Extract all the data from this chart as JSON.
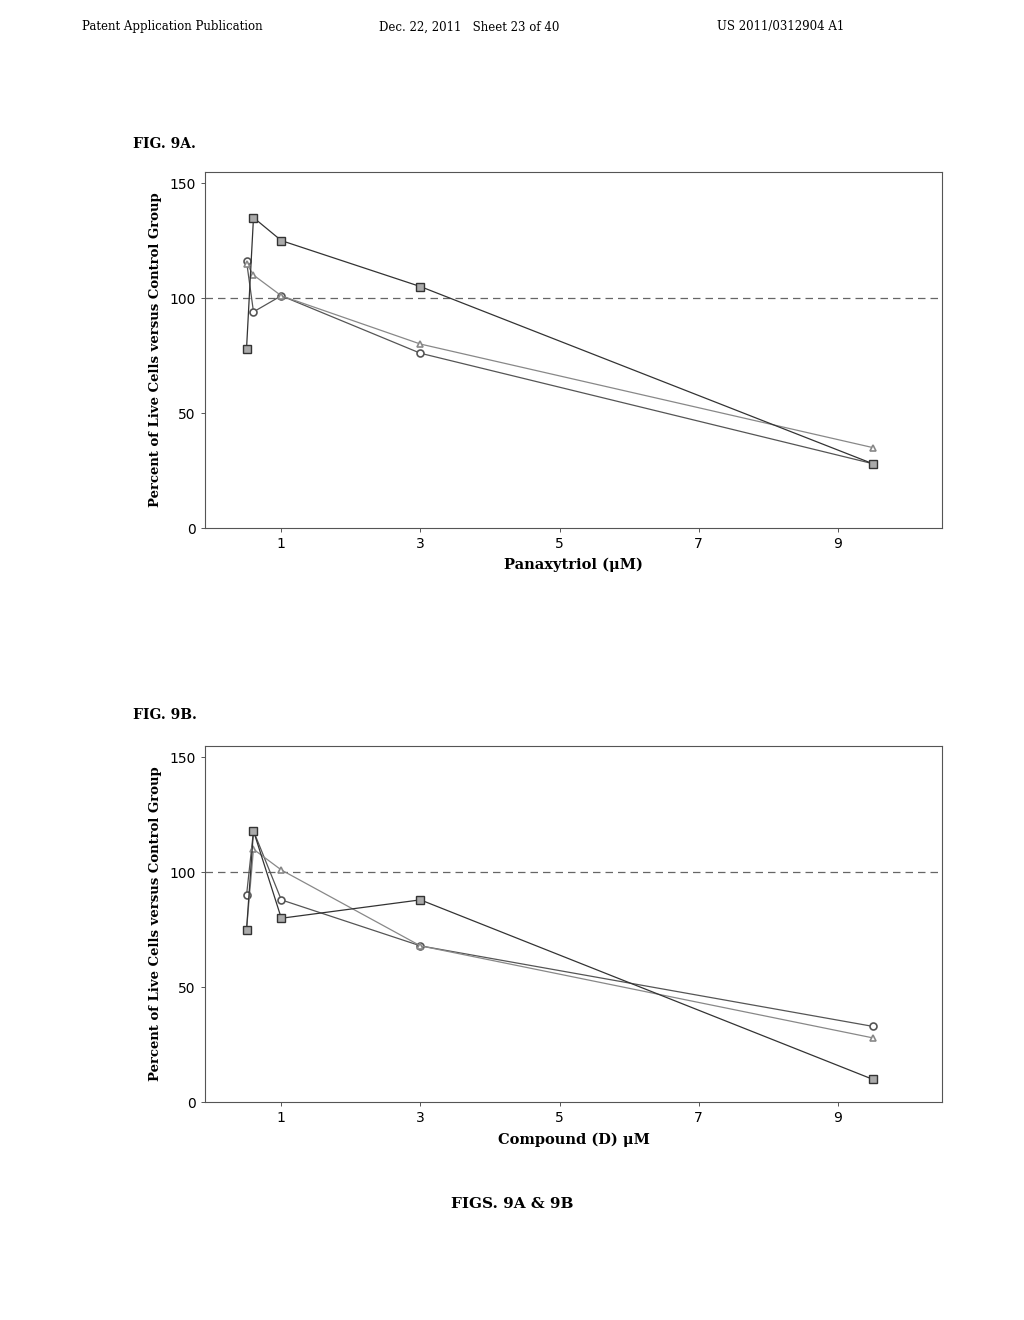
{
  "fig_label_a": "FIG. 9A.",
  "fig_label_b": "FIG. 9B.",
  "caption": "FIGS. 9A & 9B",
  "xlabel_a": "Panaxytriol (μM)",
  "xlabel_b": "Compound (D) μM",
  "ylabel": "Percent of Live Cells versus Control Group",
  "xlim": [
    -0.1,
    10.5
  ],
  "ylim": [
    0,
    155
  ],
  "xticks": [
    1,
    3,
    5,
    7,
    9
  ],
  "xtick_labels": [
    "1",
    "3",
    "5",
    "7",
    "9"
  ],
  "yticks": [
    0,
    50,
    100,
    150
  ],
  "dashed_line_y": 100,
  "plot_a_series": [
    {
      "x": [
        0.5,
        0.6,
        1,
        3,
        9.5
      ],
      "y": [
        116,
        94,
        101,
        76,
        28
      ],
      "marker": "o",
      "color": "#555555"
    },
    {
      "x": [
        0.5,
        0.6,
        1,
        3,
        9.5
      ],
      "y": [
        115,
        110,
        101,
        80,
        35
      ],
      "marker": "^",
      "color": "#888888"
    },
    {
      "x": [
        0.5,
        0.6,
        1,
        3,
        9.5
      ],
      "y": [
        78,
        135,
        125,
        105,
        28
      ],
      "marker": "s",
      "color": "#333333"
    }
  ],
  "plot_b_series": [
    {
      "x": [
        0.5,
        0.6,
        1,
        3,
        9.5
      ],
      "y": [
        90,
        118,
        88,
        68,
        33
      ],
      "marker": "o",
      "color": "#555555"
    },
    {
      "x": [
        0.5,
        0.6,
        1,
        3,
        9.5
      ],
      "y": [
        75,
        110,
        101,
        68,
        28
      ],
      "marker": "^",
      "color": "#888888"
    },
    {
      "x": [
        0.5,
        0.6,
        1,
        3,
        9.5
      ],
      "y": [
        75,
        118,
        80,
        88,
        10
      ],
      "marker": "s",
      "color": "#333333"
    }
  ],
  "background_color": "#ffffff",
  "text_color": "#000000",
  "header_left": "Patent Application Publication",
  "header_mid": "Dec. 22, 2011   Sheet 23 of 40",
  "header_right": "US 2011/0312904 A1"
}
